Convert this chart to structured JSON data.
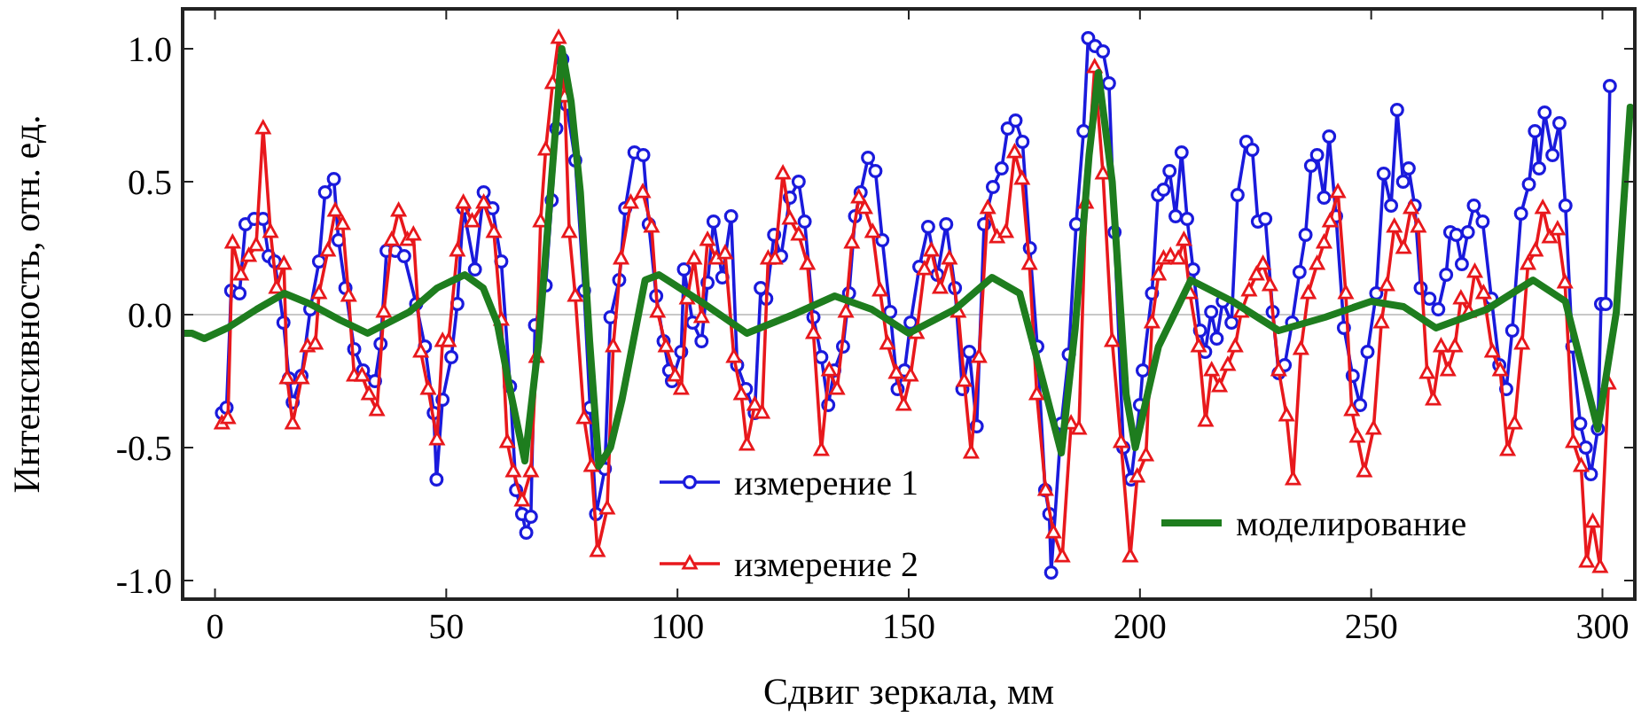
{
  "chart_data": {
    "type": "line",
    "xlabel": "Сдвиг зеркала, мм",
    "ylabel": "Интенсивность, отн. ед.",
    "xlim": [
      -7,
      307
    ],
    "ylim": [
      -1.07,
      1.15
    ],
    "xticks": [
      0,
      50,
      100,
      150,
      200,
      250,
      300
    ],
    "yticks": [
      {
        "value": -1,
        "label": "-1.0"
      },
      {
        "value": -0.5,
        "label": "-0.5"
      },
      {
        "value": 0,
        "label": "0.0"
      },
      {
        "value": 0.5,
        "label": "0.5"
      },
      {
        "value": 1,
        "label": "1.0"
      }
    ],
    "legend": "bottom",
    "grid": false,
    "line_style": "solid",
    "ref_lines": [
      {
        "axis": "y",
        "value": 0,
        "color": "#c8c8c8"
      }
    ],
    "series": [
      {
        "name": "измерение 1",
        "color": "#1a1adc",
        "marker": "circle",
        "x": [
          1.5,
          2.5,
          3.5,
          5.3,
          6.6,
          8.5,
          10.4,
          11.6,
          12.9,
          14.8,
          16,
          16.8,
          18.7,
          20.6,
          22.5,
          23.8,
          25.7,
          26.7,
          28.2,
          30.1,
          32,
          34.6,
          35.8,
          37.1,
          39,
          40.9,
          43.5,
          45.4,
          47.3,
          47.9,
          49.2,
          51.1,
          52.4,
          53.7,
          56.2,
          58.1,
          60,
          61.9,
          63.8,
          65.1,
          66.4,
          67.3,
          68.3,
          69.2,
          71.5,
          72.8,
          73.8,
          75.1,
          76,
          77.9,
          79.8,
          81.1,
          82.4,
          84.3,
          85.5,
          87.4,
          88.7,
          90.7,
          92.6,
          93.8,
          95.4,
          97,
          98.2,
          98.8,
          100.8,
          101.4,
          103.3,
          105.2,
          106.5,
          107.8,
          109.7,
          111.6,
          112.9,
          114.8,
          116.7,
          118,
          119.2,
          120.9,
          122.4,
          124.3,
          126.2,
          127.5,
          129.4,
          131.1,
          132.6,
          133.9,
          135.8,
          137.1,
          138.4,
          139.6,
          141.2,
          142.8,
          144.3,
          146,
          147.6,
          149.1,
          150.4,
          152.3,
          154.2,
          156.2,
          158.1,
          160,
          161.6,
          163.1,
          164.7,
          166.3,
          168.2,
          170.1,
          171.4,
          173.1,
          174.6,
          176.2,
          177.8,
          179.5,
          180.4,
          180.8,
          183,
          184.6,
          186.2,
          187.8,
          188.8,
          190.3,
          192,
          193.3,
          194.5,
          196.4,
          198.1,
          200,
          200.6,
          202.6,
          203.9,
          205.1,
          206.4,
          207.7,
          209,
          210.2,
          211.5,
          213,
          214.1,
          215.4,
          216.6,
          217.9,
          219.8,
          221.1,
          223,
          224.3,
          225.5,
          227.1,
          228.7,
          230,
          231.3,
          232.9,
          234.5,
          235.8,
          237,
          238.3,
          239.8,
          240.9,
          242.4,
          244.1,
          246,
          247.6,
          249.2,
          251.1,
          252.7,
          254.3,
          255.6,
          256.9,
          258.1,
          259.4,
          260.7,
          262.6,
          264.5,
          266.2,
          267.1,
          268.4,
          269.6,
          270.9,
          272.2,
          274.1,
          276,
          277.7,
          279.2,
          280.5,
          282.4,
          284.1,
          285.4,
          286.3,
          287.5,
          289.2,
          290.7,
          292,
          293.5,
          295.2,
          296.4,
          297.5,
          299,
          299.7,
          300.7,
          301.6
        ],
        "values": [
          -0.37,
          -0.35,
          0.09,
          0.08,
          0.34,
          0.36,
          0.36,
          0.22,
          0.2,
          -0.03,
          -0.24,
          -0.33,
          -0.23,
          0.02,
          0.2,
          0.46,
          0.51,
          0.28,
          0.1,
          -0.13,
          -0.21,
          -0.25,
          -0.11,
          0.24,
          0.24,
          0.22,
          0.04,
          -0.12,
          -0.37,
          -0.62,
          -0.32,
          -0.16,
          0.04,
          0.4,
          0.17,
          0.46,
          0.4,
          0.2,
          -0.27,
          -0.66,
          -0.75,
          -0.82,
          -0.76,
          -0.04,
          0.11,
          0.43,
          0.7,
          0.96,
          0.79,
          0.58,
          0.09,
          -0.35,
          -0.75,
          -0.58,
          -0.01,
          0.13,
          0.4,
          0.61,
          0.6,
          0.34,
          0.07,
          -0.1,
          -0.21,
          -0.25,
          -0.14,
          0.17,
          -0.03,
          -0.1,
          0.12,
          0.35,
          0.14,
          0.37,
          -0.19,
          -0.28,
          -0.37,
          0.1,
          0.06,
          0.3,
          0.22,
          0.44,
          0.5,
          0.35,
          -0.01,
          -0.16,
          -0.34,
          -0.21,
          -0.12,
          0.08,
          0.37,
          0.46,
          0.59,
          0.54,
          0.28,
          0.01,
          -0.28,
          -0.21,
          -0.03,
          0.18,
          0.33,
          0.15,
          0.34,
          0.1,
          -0.28,
          -0.14,
          -0.42,
          0.34,
          0.48,
          0.55,
          0.7,
          0.73,
          0.65,
          0.25,
          -0.12,
          -0.66,
          -0.75,
          -0.97,
          -0.41,
          -0.15,
          0.34,
          0.69,
          1.04,
          1.01,
          0.99,
          0.87,
          0.31,
          -0.5,
          -0.62,
          -0.34,
          -0.21,
          0.08,
          0.45,
          0.47,
          0.54,
          0.37,
          0.61,
          0.36,
          0.17,
          -0.06,
          -0.14,
          0.01,
          -0.09,
          0.05,
          -0.03,
          0.45,
          0.65,
          0.62,
          0.35,
          0.36,
          0.01,
          -0.22,
          -0.19,
          -0.03,
          0.16,
          0.3,
          0.56,
          0.6,
          0.44,
          0.67,
          0.37,
          -0.05,
          -0.23,
          -0.34,
          -0.14,
          0.08,
          0.53,
          0.41,
          0.77,
          0.5,
          0.55,
          0.41,
          0.1,
          0.06,
          0.02,
          0.15,
          0.31,
          0.3,
          0.19,
          0.31,
          0.41,
          0.35,
          0.06,
          -0.19,
          -0.28,
          -0.06,
          0.38,
          0.49,
          0.69,
          0.55,
          0.76,
          0.6,
          0.72,
          0.41,
          -0.12,
          -0.41,
          -0.5,
          -0.6,
          -0.43,
          0.04,
          0.04,
          0.86
        ]
      },
      {
        "name": "измерение 2",
        "color": "#e8181c",
        "marker": "triangle",
        "x": [
          1.5,
          2.8,
          3.8,
          5.6,
          7.3,
          8.9,
          10.4,
          12,
          13.3,
          14.9,
          15.6,
          16.8,
          18.7,
          20,
          21.7,
          22.5,
          24.4,
          26,
          27.6,
          28.9,
          30.1,
          31.8,
          33.3,
          35,
          36.5,
          38.2,
          39.7,
          41.6,
          42.9,
          44.5,
          46.1,
          48,
          49.2,
          50.5,
          52.4,
          53.7,
          55.6,
          58.1,
          60.3,
          61.9,
          63.2,
          64.5,
          66.4,
          68.3,
          69.5,
          70.4,
          71.5,
          73,
          74.3,
          75.6,
          76.6,
          77.9,
          79.8,
          81.4,
          82.7,
          84.8,
          86.1,
          87.8,
          89.9,
          92.5,
          94.4,
          95.7,
          97.5,
          99.5,
          100.8,
          102.1,
          103.6,
          105.2,
          106.5,
          108.4,
          110.3,
          112.2,
          113.8,
          115,
          116.7,
          118.3,
          119.6,
          121.1,
          122.8,
          124.3,
          126.2,
          128.1,
          129.4,
          131.1,
          132.8,
          134.5,
          136.4,
          137.7,
          139.2,
          140.5,
          142.2,
          143.8,
          145.4,
          147.3,
          148.9,
          150.4,
          151.7,
          153.4,
          154.9,
          156.8,
          158.8,
          160.7,
          162,
          163.5,
          165.2,
          167.1,
          169.1,
          171,
          172.9,
          174.5,
          176.1,
          177.7,
          179.6,
          181.3,
          183.2,
          185.1,
          186.8,
          188.3,
          190.2,
          192,
          194,
          195.9,
          197.9,
          199.4,
          201.3,
          202.6,
          204,
          205.1,
          206.6,
          208.3,
          209.5,
          210.8,
          212.7,
          214.2,
          215.5,
          217.2,
          219,
          220.6,
          221.9,
          223.6,
          225.2,
          226.6,
          228.1,
          230,
          231.7,
          233.1,
          234.8,
          236.4,
          238.3,
          239.8,
          241.1,
          242.8,
          244.5,
          245.8,
          247,
          248.5,
          250.5,
          252.2,
          253.4,
          255,
          257,
          258.6,
          260.2,
          262.1,
          263.4,
          265.1,
          266.6,
          268.1,
          269.4,
          271.1,
          272.4,
          274.3,
          276.2,
          277.9,
          279.5,
          281,
          282.6,
          283.9,
          285.5,
          287.1,
          288.6,
          290.3,
          291.9,
          293.7,
          295.4,
          296.6,
          297.9,
          299.5,
          301.3
        ],
        "values": [
          -0.41,
          -0.39,
          0.27,
          0.15,
          0.22,
          0.26,
          0.7,
          0.31,
          0.1,
          0.19,
          -0.24,
          -0.41,
          -0.24,
          -0.12,
          -0.11,
          0.08,
          0.24,
          0.39,
          0.34,
          0.07,
          -0.23,
          -0.23,
          -0.3,
          -0.36,
          0.01,
          0.28,
          0.39,
          0.28,
          0.3,
          -0.14,
          -0.28,
          -0.47,
          -0.1,
          -0.1,
          0.24,
          0.42,
          0.35,
          0.42,
          0.31,
          -0.02,
          -0.48,
          -0.59,
          -0.7,
          -0.59,
          -0.16,
          0.35,
          0.62,
          0.87,
          1.04,
          0.82,
          0.31,
          0.07,
          -0.39,
          -0.57,
          -0.89,
          -0.73,
          -0.12,
          0.21,
          0.42,
          0.46,
          0.33,
          0.01,
          -0.12,
          -0.23,
          -0.28,
          0.06,
          0.21,
          -0.01,
          0.28,
          0.21,
          0.23,
          -0.16,
          -0.3,
          -0.49,
          -0.34,
          -0.37,
          0.21,
          0.21,
          0.53,
          0.36,
          0.3,
          0.19,
          -0.07,
          -0.51,
          -0.21,
          -0.28,
          0.01,
          0.27,
          0.44,
          0.4,
          0.31,
          0.09,
          -0.11,
          -0.22,
          -0.34,
          -0.23,
          -0.07,
          0.17,
          0.24,
          0.1,
          0.21,
          0.01,
          -0.25,
          -0.52,
          -0.16,
          0.4,
          0.29,
          0.31,
          0.61,
          0.51,
          0.19,
          -0.3,
          -0.66,
          -0.82,
          -0.91,
          -0.41,
          -0.43,
          0.42,
          0.93,
          0.53,
          -0.1,
          -0.48,
          -0.91,
          -0.61,
          -0.53,
          -0.03,
          0.15,
          0.21,
          0.22,
          0.21,
          0.28,
          0.08,
          -0.12,
          -0.4,
          -0.21,
          -0.27,
          -0.19,
          -0.12,
          0.01,
          0.09,
          0.15,
          0.19,
          0.11,
          -0.21,
          -0.38,
          -0.62,
          -0.13,
          0.08,
          0.19,
          0.27,
          0.35,
          0.46,
          0.08,
          -0.36,
          -0.46,
          -0.59,
          -0.43,
          -0.03,
          0.11,
          0.33,
          0.25,
          0.4,
          0.33,
          -0.22,
          -0.32,
          -0.12,
          -0.21,
          -0.12,
          0.06,
          0.01,
          0.16,
          0.08,
          -0.14,
          -0.21,
          -0.51,
          -0.41,
          -0.11,
          0.19,
          0.24,
          0.4,
          0.29,
          0.32,
          0.12,
          -0.48,
          -0.57,
          -0.93,
          -0.78,
          -0.95,
          -0.26
        ]
      },
      {
        "name": "моделирование",
        "color": "#1e7d1e",
        "marker": "none",
        "x": [
          -7,
          -5,
          -2.3,
          2.7,
          9,
          15,
          20.6,
          27,
          33,
          42,
          48,
          54,
          58,
          61,
          64,
          67,
          70,
          72.5,
          75,
          77,
          79,
          81,
          83,
          85.5,
          88,
          93,
          96,
          105,
          115,
          125,
          134,
          142,
          150,
          160,
          168,
          174,
          179,
          183,
          186,
          189,
          191,
          194,
          197,
          199,
          204,
          211,
          220,
          230,
          240,
          250,
          257,
          264,
          275,
          285,
          292,
          299,
          303,
          306
        ],
        "values": [
          -0.07,
          -0.07,
          -0.09,
          -0.05,
          0.02,
          0.08,
          0.04,
          -0.02,
          -0.07,
          0.01,
          0.1,
          0.15,
          0.1,
          -0.03,
          -0.3,
          -0.55,
          -0.1,
          0.45,
          1.0,
          0.8,
          0.46,
          -0.1,
          -0.57,
          -0.5,
          -0.32,
          0.13,
          0.15,
          0.05,
          -0.07,
          0.0,
          0.07,
          0.02,
          -0.07,
          0.02,
          0.14,
          0.08,
          -0.25,
          -0.52,
          -0.05,
          0.6,
          0.91,
          0.5,
          -0.3,
          -0.5,
          -0.12,
          0.13,
          0.05,
          -0.06,
          -0.01,
          0.05,
          0.03,
          -0.05,
          0.02,
          0.13,
          0.05,
          -0.43,
          0.01,
          0.78
        ]
      }
    ]
  }
}
